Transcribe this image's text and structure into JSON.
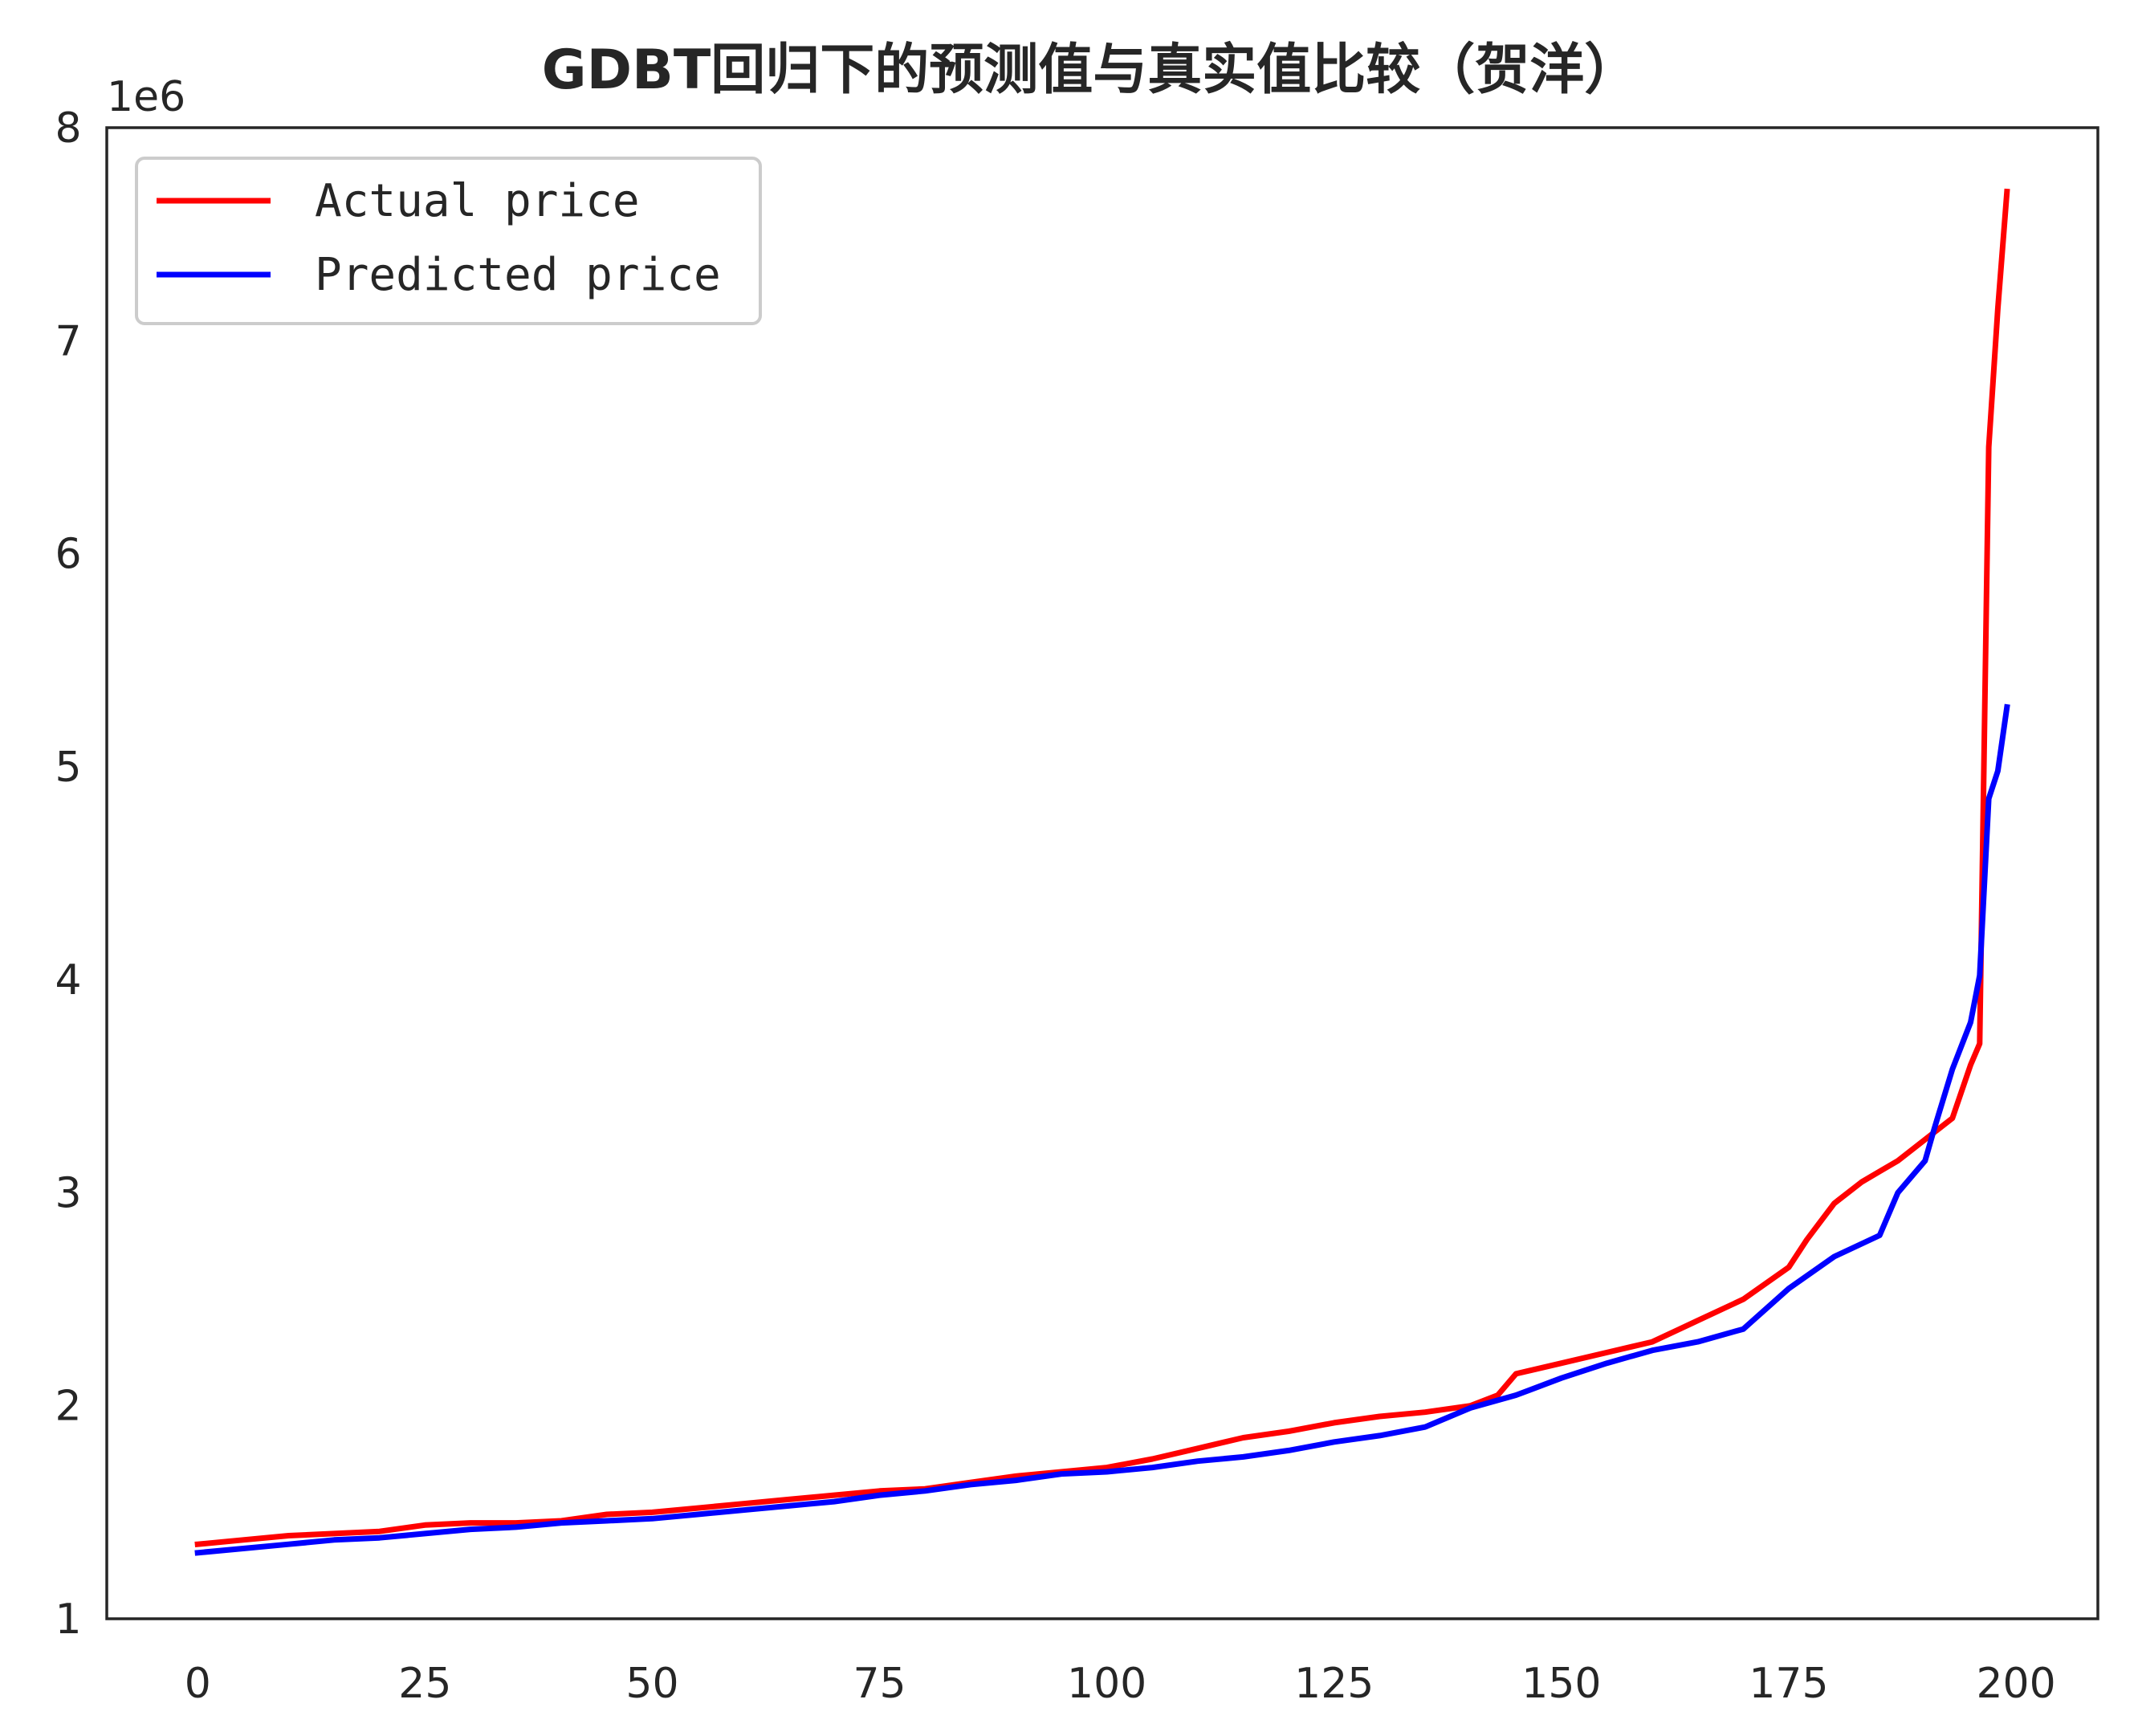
{
  "chart_data": {
    "type": "line",
    "title": "GDBT回归下的预测值与真实值比较（贺洋）",
    "xlabel": "",
    "ylabel": "",
    "y_offset_label": "1e6",
    "xlim": [
      -10,
      209
    ],
    "ylim": [
      1000000,
      8000000
    ],
    "x_ticks": [
      0,
      25,
      50,
      75,
      100,
      125,
      150,
      175,
      200
    ],
    "x_tick_labels": [
      "0",
      "25",
      "50",
      "75",
      "100",
      "125",
      "150",
      "175",
      "200"
    ],
    "y_ticks": [
      1000000,
      2000000,
      3000000,
      4000000,
      5000000,
      6000000,
      7000000,
      8000000
    ],
    "y_tick_labels": [
      "1",
      "2",
      "3",
      "4",
      "5",
      "6",
      "7",
      "8"
    ],
    "grid": false,
    "legend_position": "top-left",
    "series": [
      {
        "name": "Actual price",
        "color": "#ff0000",
        "x": [
          0,
          5,
          10,
          15,
          20,
          25,
          30,
          35,
          40,
          45,
          50,
          55,
          60,
          65,
          70,
          75,
          80,
          85,
          90,
          95,
          100,
          105,
          110,
          115,
          120,
          125,
          130,
          135,
          140,
          143,
          145,
          150,
          155,
          160,
          165,
          170,
          175,
          177,
          180,
          183,
          185,
          187,
          190,
          193,
          195,
          196,
          197,
          198,
          199
        ],
        "y": [
          1350000,
          1370000,
          1390000,
          1400000,
          1410000,
          1440000,
          1450000,
          1450000,
          1460000,
          1490000,
          1500000,
          1520000,
          1540000,
          1560000,
          1580000,
          1600000,
          1610000,
          1640000,
          1670000,
          1690000,
          1710000,
          1750000,
          1800000,
          1850000,
          1880000,
          1920000,
          1950000,
          1970000,
          2000000,
          2050000,
          2150000,
          2200000,
          2250000,
          2300000,
          2400000,
          2500000,
          2650000,
          2780000,
          2950000,
          3050000,
          3100000,
          3150000,
          3250000,
          3350000,
          3600000,
          3700000,
          6500000,
          7150000,
          7700000
        ]
      },
      {
        "name": "Predicted price",
        "color": "#0000ff",
        "x": [
          0,
          5,
          10,
          15,
          20,
          25,
          30,
          35,
          40,
          45,
          50,
          55,
          60,
          65,
          70,
          75,
          80,
          85,
          90,
          95,
          100,
          105,
          110,
          115,
          120,
          125,
          130,
          135,
          140,
          145,
          150,
          155,
          160,
          165,
          170,
          175,
          180,
          185,
          187,
          190,
          191,
          193,
          195,
          196,
          197,
          198,
          199
        ],
        "y": [
          1310000,
          1330000,
          1350000,
          1370000,
          1380000,
          1400000,
          1420000,
          1430000,
          1450000,
          1460000,
          1470000,
          1490000,
          1510000,
          1530000,
          1550000,
          1580000,
          1600000,
          1630000,
          1650000,
          1680000,
          1690000,
          1710000,
          1740000,
          1760000,
          1790000,
          1830000,
          1860000,
          1900000,
          1990000,
          2050000,
          2130000,
          2200000,
          2260000,
          2300000,
          2360000,
          2550000,
          2700000,
          2800000,
          3000000,
          3150000,
          3300000,
          3580000,
          3800000,
          4020000,
          4850000,
          4980000,
          5280000
        ]
      }
    ]
  }
}
